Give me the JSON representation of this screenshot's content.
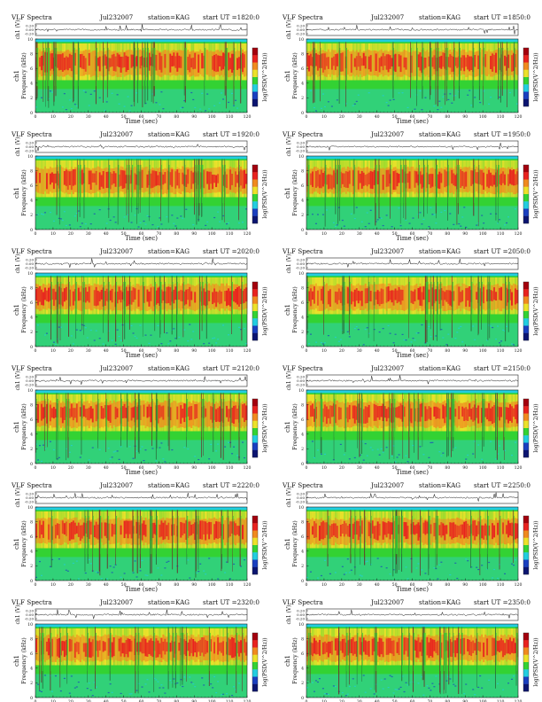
{
  "page": {
    "station_label": "station=KAG",
    "xlabel": "Time (sec)",
    "ylabel_freq": "Frequency (kHz)",
    "ylabel_top": "ch1 (V)",
    "channel_label": "ch1",
    "cbar_label": "log(PSD(V^2/Hz))",
    "colors": {
      "blue": "#1a3fbf",
      "cyan": "#22cde0",
      "green": "#33d233",
      "yellow": "#ece12a",
      "orange": "#f08a1f",
      "red": "#e8221f",
      "dark_red": "#a3000d"
    }
  },
  "chart_data": [
    {
      "type": "heatmap",
      "title_left": "VLF Spectra",
      "date": "Jul232007",
      "station": "station=KAG",
      "ut": "start UT =1820:0",
      "xlabel": "Time (sec)",
      "ylabel": "Frequency (kHz)",
      "x_ticks": [
        0,
        10,
        20,
        30,
        40,
        50,
        60,
        70,
        80,
        90,
        100,
        110,
        120
      ],
      "y_ticks": [
        0,
        2,
        4,
        6,
        8,
        10
      ],
      "top_ticks": [
        "0.20",
        "0.00",
        "-0.20"
      ],
      "xlim": [
        0,
        120
      ],
      "ylim": [
        0,
        10
      ],
      "grid": false
    },
    {
      "type": "heatmap",
      "title_left": "VLF Spectra",
      "date": "Jul232007",
      "station": "station=KAG",
      "ut": "start UT =1850:0",
      "xlabel": "Time (sec)",
      "ylabel": "Frequency (kHz)",
      "x_ticks": [
        0,
        10,
        20,
        30,
        40,
        50,
        60,
        70,
        80,
        90,
        100,
        110,
        120
      ],
      "y_ticks": [
        0,
        2,
        4,
        6,
        8,
        10
      ],
      "top_ticks": [
        "0.20",
        "0.00",
        "-0.20"
      ],
      "xlim": [
        0,
        120
      ],
      "ylim": [
        0,
        10
      ],
      "grid": false
    },
    {
      "type": "heatmap",
      "title_left": "VLF Spectra",
      "date": "Jul232007",
      "station": "station=KAG",
      "ut": "start UT =1920:0",
      "xlabel": "Time (sec)",
      "ylabel": "Frequency (kHz)",
      "x_ticks": [
        0,
        10,
        20,
        30,
        40,
        50,
        60,
        70,
        80,
        90,
        100,
        110,
        120
      ],
      "y_ticks": [
        0,
        2,
        4,
        6,
        8,
        10
      ],
      "top_ticks": [
        "0.20",
        "0.00",
        "-0.20"
      ],
      "xlim": [
        0,
        120
      ],
      "ylim": [
        0,
        10
      ],
      "grid": false
    },
    {
      "type": "heatmap",
      "title_left": "VLF Spectra",
      "date": "Jul232007",
      "station": "station=KAG",
      "ut": "start UT =1950:0",
      "xlabel": "Time (sec)",
      "ylabel": "Frequency (kHz)",
      "x_ticks": [
        0,
        10,
        20,
        30,
        40,
        50,
        60,
        70,
        80,
        90,
        100,
        110,
        120
      ],
      "y_ticks": [
        0,
        2,
        4,
        6,
        8,
        10
      ],
      "top_ticks": [
        "0.20",
        "0.00",
        "-0.20"
      ],
      "xlim": [
        0,
        120
      ],
      "ylim": [
        0,
        10
      ],
      "grid": false
    },
    {
      "type": "heatmap",
      "title_left": "VLF Spectra",
      "date": "Jul232007",
      "station": "station=KAG",
      "ut": "start UT =2020:0",
      "xlabel": "Time (sec)",
      "ylabel": "Frequency (kHz)",
      "x_ticks": [
        0,
        10,
        20,
        30,
        40,
        50,
        60,
        70,
        80,
        90,
        100,
        110,
        120
      ],
      "y_ticks": [
        0,
        2,
        4,
        6,
        8,
        10
      ],
      "top_ticks": [
        "0.20",
        "0.00",
        "-0.20"
      ],
      "xlim": [
        0,
        120
      ],
      "ylim": [
        0,
        10
      ],
      "grid": false
    },
    {
      "type": "heatmap",
      "title_left": "VLF Spectra",
      "date": "Jul232007",
      "station": "station=KAG",
      "ut": "start UT =2050:0",
      "xlabel": "Time (sec)",
      "ylabel": "Frequency (kHz)",
      "x_ticks": [
        0,
        10,
        20,
        30,
        40,
        50,
        60,
        70,
        80,
        90,
        100,
        110,
        120
      ],
      "y_ticks": [
        0,
        2,
        4,
        6,
        8,
        10
      ],
      "top_ticks": [
        "0.20",
        "0.00",
        "-0.20"
      ],
      "xlim": [
        0,
        120
      ],
      "ylim": [
        0,
        10
      ],
      "grid": false
    },
    {
      "type": "heatmap",
      "title_left": "VLF Spectra",
      "date": "Jul232007",
      "station": "station=KAG",
      "ut": "start UT =2120:0",
      "xlabel": "Time (sec)",
      "ylabel": "Frequency (kHz)",
      "x_ticks": [
        0,
        10,
        20,
        30,
        40,
        50,
        60,
        70,
        80,
        90,
        100,
        110,
        120
      ],
      "y_ticks": [
        0,
        2,
        4,
        6,
        8,
        10
      ],
      "top_ticks": [
        "0.20",
        "0.00",
        "-0.20"
      ],
      "xlim": [
        0,
        120
      ],
      "ylim": [
        0,
        10
      ],
      "grid": false
    },
    {
      "type": "heatmap",
      "title_left": "VLF Spectra",
      "date": "Jul232007",
      "station": "station=KAG",
      "ut": "start UT =2150:0",
      "xlabel": "Time (sec)",
      "ylabel": "Frequency (kHz)",
      "x_ticks": [
        0,
        10,
        20,
        30,
        40,
        50,
        60,
        70,
        80,
        90,
        100,
        110,
        120
      ],
      "y_ticks": [
        0,
        2,
        4,
        6,
        8,
        10
      ],
      "top_ticks": [
        "0.20",
        "0.00",
        "-0.20"
      ],
      "xlim": [
        0,
        120
      ],
      "ylim": [
        0,
        10
      ],
      "grid": false
    },
    {
      "type": "heatmap",
      "title_left": "VLF Spectra",
      "date": "Jul232007",
      "station": "station=KAG",
      "ut": "start UT =2220:0",
      "xlabel": "Time (sec)",
      "ylabel": "Frequency (kHz)",
      "x_ticks": [
        0,
        10,
        20,
        30,
        40,
        50,
        60,
        70,
        80,
        90,
        100,
        110,
        120
      ],
      "y_ticks": [
        0,
        2,
        4,
        6,
        8,
        10
      ],
      "top_ticks": [
        "0.20",
        "0.00",
        "-0.20"
      ],
      "xlim": [
        0,
        120
      ],
      "ylim": [
        0,
        10
      ],
      "grid": false
    },
    {
      "type": "heatmap",
      "title_left": "VLF Spectra",
      "date": "Jul232007",
      "station": "station=KAG",
      "ut": "start UT =2250:0",
      "xlabel": "Time (sec)",
      "ylabel": "Frequency (kHz)",
      "x_ticks": [
        0,
        10,
        20,
        30,
        40,
        50,
        60,
        70,
        80,
        90,
        100,
        110,
        120
      ],
      "y_ticks": [
        0,
        2,
        4,
        6,
        8,
        10
      ],
      "top_ticks": [
        "0.20",
        "0.00",
        "-0.20"
      ],
      "xlim": [
        0,
        120
      ],
      "ylim": [
        0,
        10
      ],
      "grid": false
    },
    {
      "type": "heatmap",
      "title_left": "VLF Spectra",
      "date": "Jul232007",
      "station": "station=KAG",
      "ut": "start UT =2320:0",
      "xlabel": "Time (sec)",
      "ylabel": "Frequency (kHz)",
      "x_ticks": [
        0,
        10,
        20,
        30,
        40,
        50,
        60,
        70,
        80,
        90,
        100,
        110,
        120
      ],
      "y_ticks": [
        0,
        2,
        4,
        6,
        8,
        10
      ],
      "top_ticks": [
        "0.20",
        "0.00",
        "-0.20"
      ],
      "xlim": [
        0,
        120
      ],
      "ylim": [
        0,
        10
      ],
      "grid": false
    },
    {
      "type": "heatmap",
      "title_left": "VLF Spectra",
      "date": "Jul232007",
      "station": "station=KAG",
      "ut": "start UT =2350:0",
      "xlabel": "Time (sec)",
      "ylabel": "Frequency (kHz)",
      "x_ticks": [
        0,
        10,
        20,
        30,
        40,
        50,
        60,
        70,
        80,
        90,
        100,
        110,
        120
      ],
      "y_ticks": [
        0,
        2,
        4,
        6,
        8,
        10
      ],
      "top_ticks": [
        "0.20",
        "0.00",
        "-0.20"
      ],
      "xlim": [
        0,
        120
      ],
      "ylim": [
        0,
        10
      ],
      "grid": false
    }
  ]
}
